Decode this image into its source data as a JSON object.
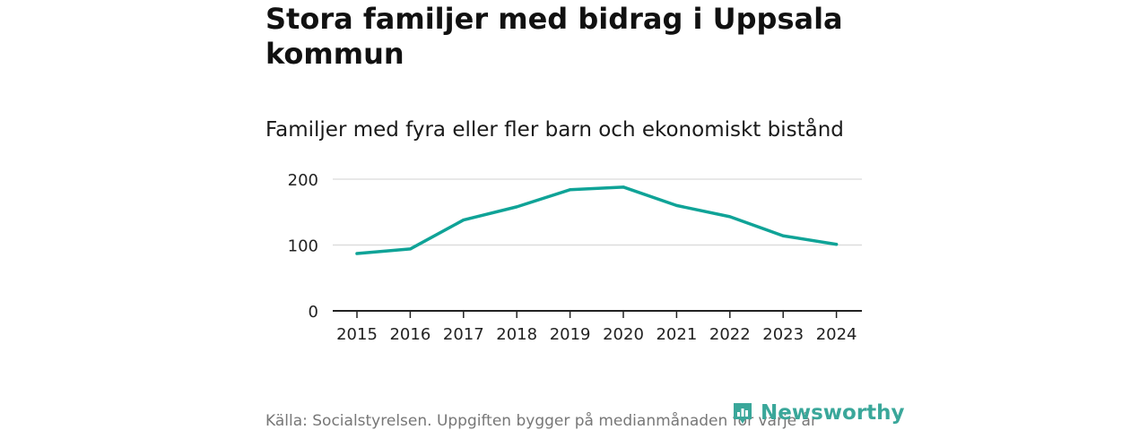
{
  "title": "Stora familjer med bidrag i Uppsala kommun",
  "subtitle": "Familjer med fyra eller fler barn och ekonomiskt bistånd",
  "source": "Källa: Socialstyrelsen. Uppgiften bygger på medianmånaden för varje år",
  "brand": {
    "name": "Newsworthy",
    "icon": "newsworthy-logo-icon",
    "color": "#3aa79a"
  },
  "colors": {
    "line": "#0fa397",
    "grid": "#d9d9d9",
    "axis": "#222222"
  },
  "chart_data": {
    "type": "line",
    "title": "Stora familjer med bidrag i Uppsala kommun",
    "subtitle": "Familjer med fyra eller fler barn och ekonomiskt bistånd",
    "xlabel": "",
    "ylabel": "",
    "x": [
      "2015",
      "2016",
      "2017",
      "2018",
      "2019",
      "2020",
      "2021",
      "2022",
      "2023",
      "2024"
    ],
    "series": [
      {
        "values": [
          87,
          94,
          138,
          158,
          184,
          188,
          160,
          143,
          114,
          101
        ]
      }
    ],
    "yticks": [
      0,
      100,
      200
    ],
    "ylim": [
      0,
      200
    ],
    "grid": "horizontal",
    "legend": "none"
  }
}
